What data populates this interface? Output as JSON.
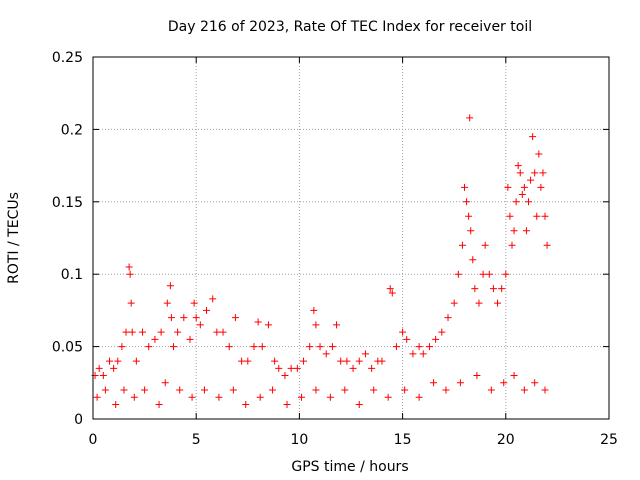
{
  "chart_data": {
    "type": "scatter",
    "title": "Day 216 of 2023, Rate Of TEC Index for receiver toil",
    "xlabel": "GPS time / hours",
    "ylabel": "ROTI / TECUs",
    "xlim": [
      0,
      25
    ],
    "ylim": [
      0,
      0.25
    ],
    "x_ticks": [
      "0",
      "5",
      "10",
      "15",
      "20",
      "25"
    ],
    "y_ticks": [
      "0",
      "0.05",
      "0.1",
      "0.15",
      "0.2",
      "0.25"
    ],
    "grid": true,
    "marker": "+",
    "color": "#ff0000",
    "series": [
      {
        "x": [
          0.1,
          0.3,
          0.5,
          0.8,
          1.0,
          1.2,
          1.4,
          1.6,
          1.75,
          1.8,
          1.85,
          1.9,
          2.1,
          2.4,
          2.7,
          3.0,
          3.3,
          3.6,
          3.75,
          3.8,
          3.9,
          4.1,
          4.4,
          4.7,
          4.9,
          5.0,
          5.2,
          5.5,
          5.8,
          6.0,
          6.3,
          6.6,
          6.9,
          7.2,
          7.5,
          7.8,
          8.0,
          8.2,
          8.5,
          8.8,
          9.0,
          9.3,
          9.6,
          9.9,
          10.2,
          10.5,
          10.7,
          10.8,
          11.0,
          11.3,
          11.6,
          11.8,
          12.0,
          12.3,
          12.6,
          12.9,
          13.2,
          13.5,
          13.8,
          14.0,
          14.4,
          14.5,
          14.7,
          15.0,
          15.2,
          15.5,
          15.8,
          16.0,
          16.3,
          16.6,
          16.9,
          17.2,
          17.5,
          17.7,
          17.9,
          18.0,
          18.1,
          18.2,
          18.25,
          18.3,
          18.4,
          18.5,
          18.7,
          18.9,
          19.0,
          19.2,
          19.4,
          19.6,
          19.8,
          20.0,
          20.1,
          20.2,
          20.3,
          20.4,
          20.5,
          20.6,
          20.7,
          20.8,
          20.9,
          21.0,
          21.1,
          21.2,
          21.3,
          21.4,
          21.5,
          21.6,
          21.7,
          21.8,
          21.9,
          22.0,
          0.2,
          0.6,
          1.1,
          1.5,
          2.0,
          2.5,
          3.2,
          3.5,
          4.2,
          4.8,
          5.4,
          6.1,
          6.8,
          7.4,
          8.1,
          8.7,
          9.4,
          10.1,
          10.8,
          11.5,
          12.2,
          12.9,
          13.6,
          14.3,
          15.1,
          15.8,
          16.5,
          17.1,
          17.8,
          18.6,
          19.3,
          19.9,
          20.4,
          20.9,
          21.4,
          21.9
        ],
        "y": [
          0.03,
          0.035,
          0.03,
          0.04,
          0.035,
          0.04,
          0.05,
          0.06,
          0.105,
          0.1,
          0.08,
          0.06,
          0.04,
          0.06,
          0.05,
          0.055,
          0.06,
          0.08,
          0.092,
          0.07,
          0.05,
          0.06,
          0.07,
          0.055,
          0.08,
          0.07,
          0.065,
          0.075,
          0.083,
          0.06,
          0.06,
          0.05,
          0.07,
          0.04,
          0.04,
          0.05,
          0.067,
          0.05,
          0.065,
          0.04,
          0.035,
          0.03,
          0.035,
          0.035,
          0.04,
          0.05,
          0.075,
          0.065,
          0.05,
          0.045,
          0.05,
          0.065,
          0.04,
          0.04,
          0.035,
          0.04,
          0.045,
          0.035,
          0.04,
          0.04,
          0.09,
          0.087,
          0.05,
          0.06,
          0.055,
          0.045,
          0.05,
          0.045,
          0.05,
          0.055,
          0.06,
          0.07,
          0.08,
          0.1,
          0.12,
          0.16,
          0.15,
          0.14,
          0.208,
          0.13,
          0.11,
          0.09,
          0.08,
          0.1,
          0.12,
          0.1,
          0.09,
          0.08,
          0.09,
          0.1,
          0.16,
          0.14,
          0.12,
          0.13,
          0.15,
          0.175,
          0.17,
          0.155,
          0.16,
          0.13,
          0.15,
          0.165,
          0.195,
          0.17,
          0.14,
          0.183,
          0.16,
          0.17,
          0.14,
          0.12,
          0.015,
          0.02,
          0.01,
          0.02,
          0.015,
          0.02,
          0.01,
          0.025,
          0.02,
          0.015,
          0.02,
          0.015,
          0.02,
          0.01,
          0.015,
          0.02,
          0.01,
          0.015,
          0.02,
          0.015,
          0.02,
          0.01,
          0.02,
          0.015,
          0.02,
          0.015,
          0.025,
          0.02,
          0.025,
          0.03,
          0.02,
          0.025,
          0.03,
          0.02,
          0.025,
          0.02
        ]
      }
    ]
  }
}
